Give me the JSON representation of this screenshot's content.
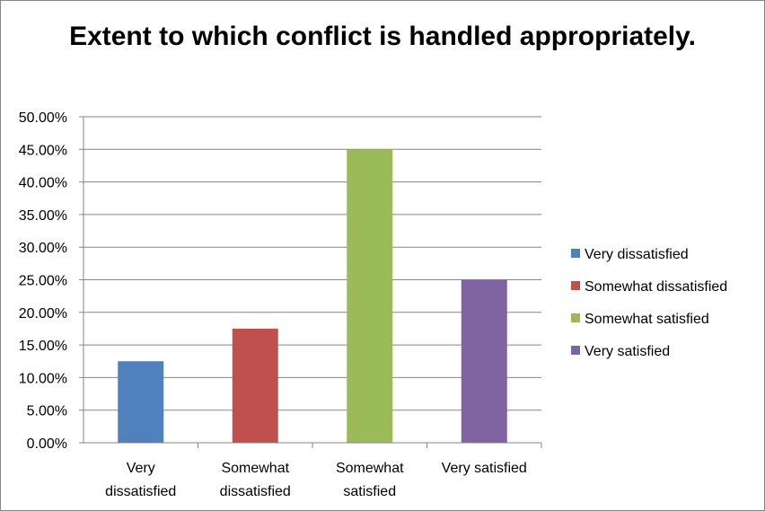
{
  "chart_data": {
    "type": "bar",
    "title": "Extent to which conflict is handled appropriately.",
    "categories": [
      "Very dissatisfied",
      "Somewhat dissatisfied",
      "Somewhat satisfied",
      "Very satisfied"
    ],
    "category_labels": [
      [
        "Very",
        "dissatisfied"
      ],
      [
        "Somewhat",
        "dissatisfied"
      ],
      [
        "Somewhat",
        "satisfied"
      ],
      [
        "Very satisfied"
      ]
    ],
    "values": [
      0.125,
      0.175,
      0.45,
      0.25
    ],
    "colors": [
      "#4F81BD",
      "#C0504D",
      "#9BBB59",
      "#8064A2"
    ],
    "ylim": [
      0,
      0.5
    ],
    "yticks": [
      "0.00%",
      "5.00%",
      "10.00%",
      "15.00%",
      "20.00%",
      "25.00%",
      "30.00%",
      "35.00%",
      "40.00%",
      "45.00%",
      "50.00%"
    ],
    "grid": true,
    "legend_position": "right",
    "legend": [
      "Very dissatisfied",
      "Somewhat dissatisfied",
      "Somewhat satisfied",
      "Very satisfied"
    ]
  }
}
